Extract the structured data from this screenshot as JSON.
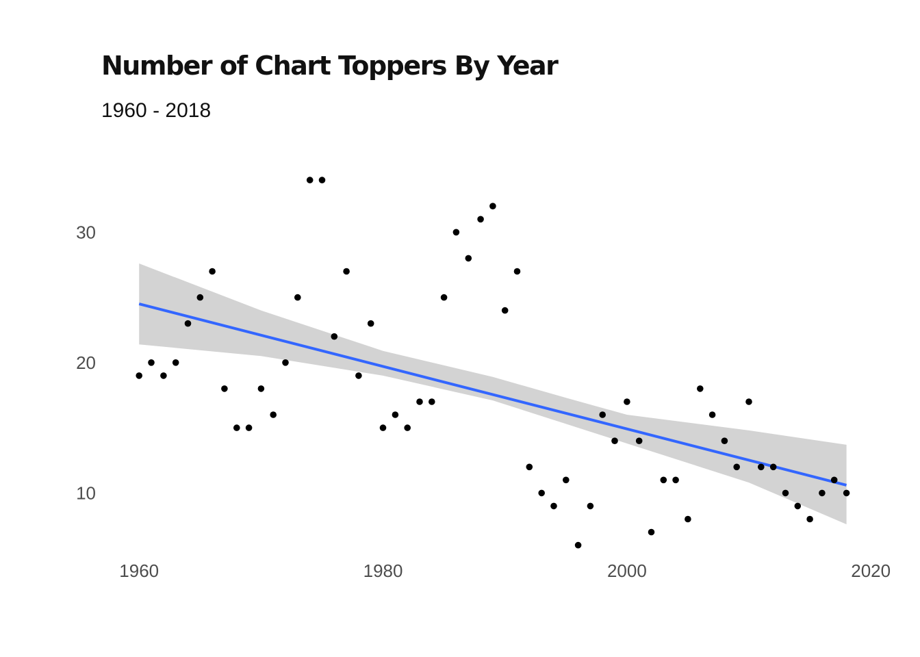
{
  "chart_data": {
    "type": "scatter",
    "title": "Number of Chart Toppers By Year",
    "subtitle": "1960 - 2018",
    "xlabel": "",
    "ylabel": "",
    "xlim": [
      1956.9,
      2021
    ],
    "ylim": [
      5.4,
      36
    ],
    "x_ticks": [
      1960,
      1980,
      2000,
      2020
    ],
    "y_ticks": [
      10,
      20,
      30
    ],
    "grid": false,
    "legend": "none",
    "point_color": "#000000",
    "points": [
      [
        1960,
        19
      ],
      [
        1961,
        20
      ],
      [
        1962,
        19
      ],
      [
        1963,
        20
      ],
      [
        1964,
        23
      ],
      [
        1965,
        25
      ],
      [
        1966,
        27
      ],
      [
        1967,
        18
      ],
      [
        1968,
        15
      ],
      [
        1969,
        15
      ],
      [
        1970,
        18
      ],
      [
        1971,
        16
      ],
      [
        1972,
        20
      ],
      [
        1973,
        25
      ],
      [
        1974,
        34
      ],
      [
        1975,
        34
      ],
      [
        1976,
        22
      ],
      [
        1977,
        27
      ],
      [
        1978,
        19
      ],
      [
        1979,
        23
      ],
      [
        1980,
        15
      ],
      [
        1981,
        16
      ],
      [
        1982,
        15
      ],
      [
        1983,
        17
      ],
      [
        1984,
        17
      ],
      [
        1985,
        25
      ],
      [
        1986,
        30
      ],
      [
        1987,
        28
      ],
      [
        1988,
        31
      ],
      [
        1989,
        32
      ],
      [
        1990,
        24
      ],
      [
        1991,
        27
      ],
      [
        1992,
        12
      ],
      [
        1993,
        10
      ],
      [
        1994,
        9
      ],
      [
        1995,
        11
      ],
      [
        1996,
        6
      ],
      [
        1997,
        9
      ],
      [
        1998,
        16
      ],
      [
        1999,
        14
      ],
      [
        2000,
        17
      ],
      [
        2001,
        14
      ],
      [
        2002,
        7
      ],
      [
        2003,
        11
      ],
      [
        2004,
        11
      ],
      [
        2005,
        8
      ],
      [
        2006,
        18
      ],
      [
        2007,
        16
      ],
      [
        2008,
        14
      ],
      [
        2009,
        12
      ],
      [
        2010,
        17
      ],
      [
        2011,
        12
      ],
      [
        2012,
        12
      ],
      [
        2013,
        10
      ],
      [
        2014,
        9
      ],
      [
        2015,
        8
      ],
      [
        2016,
        10
      ],
      [
        2017,
        11
      ],
      [
        2018,
        10
      ]
    ],
    "trend_line": {
      "method": "linear",
      "color": "#3366FF",
      "x": [
        1960,
        2018
      ],
      "y": [
        24.5,
        10.6
      ]
    },
    "confidence_band": {
      "color": "#D3D3D3",
      "x": [
        1960,
        1970,
        1980,
        1989,
        1995,
        2000,
        2010,
        2018
      ],
      "lower": [
        21.4,
        20.5,
        19.0,
        17.1,
        15.3,
        13.8,
        10.8,
        7.6
      ],
      "upper": [
        27.6,
        24.0,
        20.9,
        18.9,
        17.3,
        16.0,
        14.8,
        13.7
      ]
    }
  }
}
